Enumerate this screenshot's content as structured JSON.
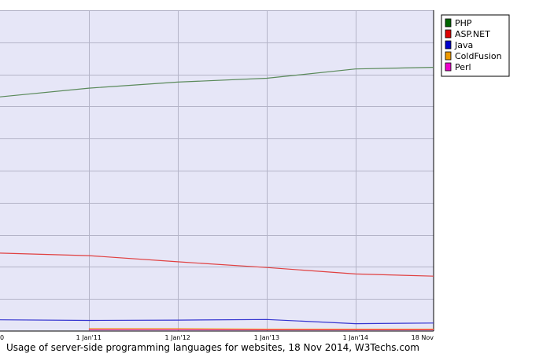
{
  "chart_data": {
    "type": "line",
    "caption": "Usage of server-side programming languages for websites, 18 Nov 2014, W3Techs.com",
    "x_ticks": [
      {
        "label": "0",
        "x": "2010-01-01"
      },
      {
        "label": "1 Jan'11",
        "x": "2011-01-01"
      },
      {
        "label": "1 Jan'12",
        "x": "2012-01-01"
      },
      {
        "label": "1 Jan'13",
        "x": "2013-01-01"
      },
      {
        "label": "1 Jan'14",
        "x": "2014-01-01"
      },
      {
        "label": "18 Nov",
        "x": "2014-11-18"
      }
    ],
    "xlim": [
      "2010-01-01",
      "2014-11-18"
    ],
    "ylim": [
      0,
      100
    ],
    "y_gridlines": [
      10,
      20,
      30,
      40,
      50,
      60,
      70,
      80,
      90,
      100
    ],
    "grid": true,
    "legend_position": "top-right",
    "series": [
      {
        "name": "PHP",
        "color": "#006600",
        "line_color": "#5a8a5a",
        "points": [
          [
            "2010-01-01",
            73.0
          ],
          [
            "2011-01-01",
            75.7
          ],
          [
            "2012-01-01",
            77.6
          ],
          [
            "2013-01-01",
            78.8
          ],
          [
            "2014-01-01",
            81.7
          ],
          [
            "2014-11-18",
            82.2
          ]
        ]
      },
      {
        "name": "ASP.NET",
        "color": "#dd0000",
        "line_color": "#e04040",
        "points": [
          [
            "2010-01-01",
            24.3
          ],
          [
            "2011-01-01",
            23.5
          ],
          [
            "2012-01-01",
            21.6
          ],
          [
            "2013-01-01",
            19.8
          ],
          [
            "2014-01-01",
            17.8
          ],
          [
            "2014-11-18",
            17.1
          ]
        ]
      },
      {
        "name": "Java",
        "color": "#0000cc",
        "line_color": "#3535d0",
        "points": [
          [
            "2010-01-01",
            3.5
          ],
          [
            "2011-01-01",
            3.3
          ],
          [
            "2012-01-01",
            3.4
          ],
          [
            "2013-01-01",
            3.6
          ],
          [
            "2014-01-01",
            2.3
          ],
          [
            "2014-11-18",
            2.5
          ]
        ]
      },
      {
        "name": "ColdFusion",
        "color": "#ee9900",
        "line_color": "#ee9900",
        "points": [
          [
            "2011-01-01",
            0.7
          ],
          [
            "2012-01-01",
            0.7
          ],
          [
            "2013-01-01",
            0.6
          ],
          [
            "2014-01-01",
            0.6
          ],
          [
            "2014-11-18",
            0.6
          ]
        ]
      },
      {
        "name": "Perl",
        "color": "#ee00cc",
        "line_color": "#ee00cc",
        "points": [
          [
            "2011-01-01",
            0.5
          ],
          [
            "2012-01-01",
            0.5
          ],
          [
            "2013-01-01",
            0.4
          ],
          [
            "2014-01-01",
            0.4
          ],
          [
            "2014-11-18",
            0.4
          ]
        ]
      }
    ]
  }
}
